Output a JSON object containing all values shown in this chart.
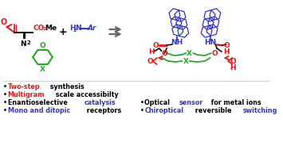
{
  "bg_color": "#ffffff",
  "arrow_color": "#666666",
  "red": "#ee1111",
  "green": "#22aa22",
  "blue": "#3333cc",
  "black": "#000000",
  "bullet_left": [
    [
      [
        "Two-step",
        "#ee1111"
      ],
      [
        " synthesis",
        "#000000"
      ]
    ],
    [
      [
        "Multigram",
        "#ee1111"
      ],
      [
        " scale accessibilty",
        "#000000"
      ]
    ],
    [
      [
        "Enantioselective ",
        "#000000"
      ],
      [
        "catalysis",
        "#3333cc"
      ]
    ],
    [
      [
        "Mono and ditopic",
        "#3333cc"
      ],
      [
        " receptors",
        "#000000"
      ]
    ]
  ],
  "bullet_right": [
    [
      [
        "Optical ",
        "#000000"
      ],
      [
        "sensor",
        "#3333cc"
      ],
      [
        " for metal ions",
        "#000000"
      ]
    ],
    [
      [
        "Chiroptical",
        "#3333cc"
      ],
      [
        " reversible ",
        "#000000"
      ],
      [
        "switching",
        "#3333cc"
      ]
    ]
  ],
  "fs": 5.8
}
